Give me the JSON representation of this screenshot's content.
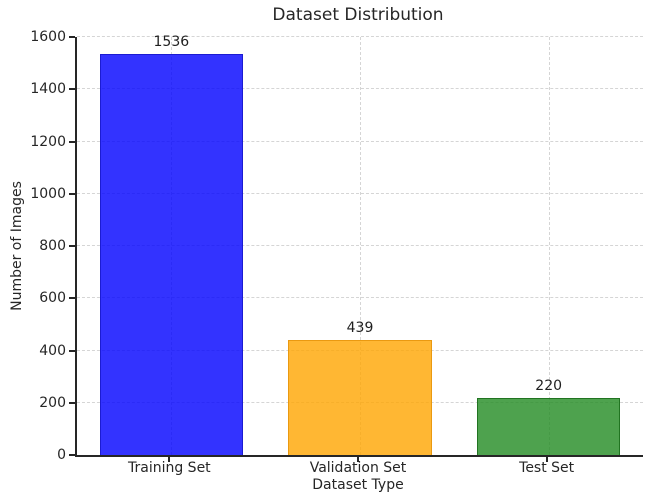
{
  "chart_data": {
    "type": "bar",
    "title": "Dataset Distribution",
    "xlabel": "Dataset Type",
    "ylabel": "Number of Images",
    "categories": [
      "Training Set",
      "Validation Set",
      "Test Set"
    ],
    "values": [
      1536,
      439,
      220
    ],
    "bar_fill_colors": [
      "#0000ff",
      "#ffa500",
      "#228b22"
    ],
    "bar_edge_colors": [
      "#1a1acd",
      "#e8960c",
      "#1d6f1d"
    ],
    "bar_fill_alpha": 0.8,
    "bar_edge_alpha": 0.9,
    "ylim": [
      0,
      1600
    ],
    "yticks": [
      0,
      200,
      400,
      600,
      800,
      1000,
      1200,
      1400,
      1600
    ],
    "grid": "dashed, both axes, behind bars",
    "gridline_color": "#d5d5d5",
    "legend": "none",
    "spines": "left and bottom only",
    "value_labels_shown": true
  }
}
